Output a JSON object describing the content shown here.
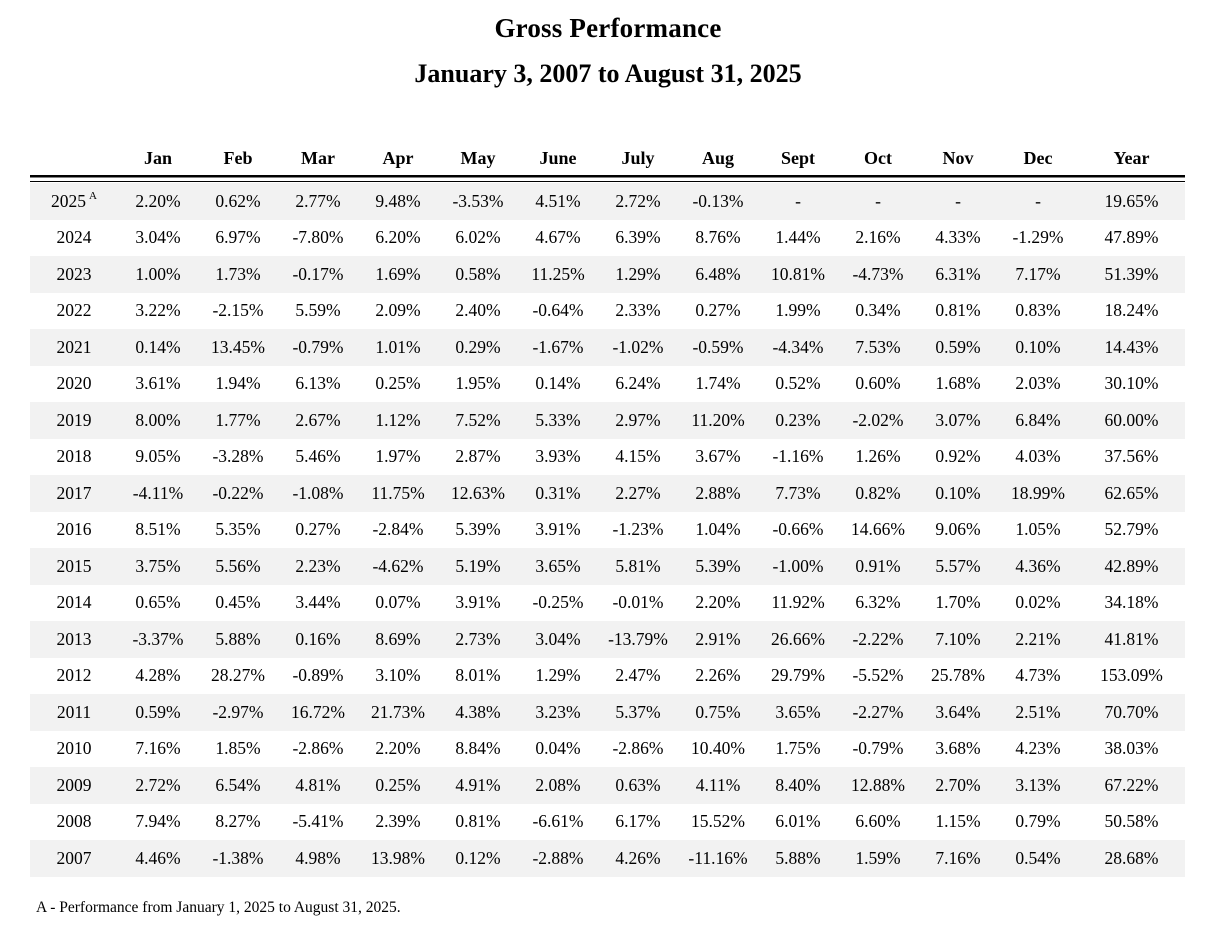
{
  "page": {
    "title": "Gross Performance",
    "subtitle": "January 3, 2007 to August 31, 2025",
    "footnote": "A - Performance from January 1, 2025 to August 31, 2025."
  },
  "colors": {
    "stripe": "#f2f2f2",
    "text": "#000000",
    "background": "#ffffff"
  },
  "table": {
    "columns": [
      "Jan",
      "Feb",
      "Mar",
      "Apr",
      "May",
      "June",
      "July",
      "Aug",
      "Sept",
      "Oct",
      "Nov",
      "Dec",
      "Year"
    ],
    "rows": [
      {
        "year": "2025",
        "superscript": "A",
        "values": [
          "2.20%",
          "0.62%",
          "2.77%",
          "9.48%",
          "-3.53%",
          "4.51%",
          "2.72%",
          "-0.13%",
          "-",
          "-",
          "-",
          "-",
          "19.65%"
        ]
      },
      {
        "year": "2024",
        "superscript": "",
        "values": [
          "3.04%",
          "6.97%",
          "-7.80%",
          "6.20%",
          "6.02%",
          "4.67%",
          "6.39%",
          "8.76%",
          "1.44%",
          "2.16%",
          "4.33%",
          "-1.29%",
          "47.89%"
        ]
      },
      {
        "year": "2023",
        "superscript": "",
        "values": [
          "1.00%",
          "1.73%",
          "-0.17%",
          "1.69%",
          "0.58%",
          "11.25%",
          "1.29%",
          "6.48%",
          "10.81%",
          "-4.73%",
          "6.31%",
          "7.17%",
          "51.39%"
        ]
      },
      {
        "year": "2022",
        "superscript": "",
        "values": [
          "3.22%",
          "-2.15%",
          "5.59%",
          "2.09%",
          "2.40%",
          "-0.64%",
          "2.33%",
          "0.27%",
          "1.99%",
          "0.34%",
          "0.81%",
          "0.83%",
          "18.24%"
        ]
      },
      {
        "year": "2021",
        "superscript": "",
        "values": [
          "0.14%",
          "13.45%",
          "-0.79%",
          "1.01%",
          "0.29%",
          "-1.67%",
          "-1.02%",
          "-0.59%",
          "-4.34%",
          "7.53%",
          "0.59%",
          "0.10%",
          "14.43%"
        ]
      },
      {
        "year": "2020",
        "superscript": "",
        "values": [
          "3.61%",
          "1.94%",
          "6.13%",
          "0.25%",
          "1.95%",
          "0.14%",
          "6.24%",
          "1.74%",
          "0.52%",
          "0.60%",
          "1.68%",
          "2.03%",
          "30.10%"
        ]
      },
      {
        "year": "2019",
        "superscript": "",
        "values": [
          "8.00%",
          "1.77%",
          "2.67%",
          "1.12%",
          "7.52%",
          "5.33%",
          "2.97%",
          "11.20%",
          "0.23%",
          "-2.02%",
          "3.07%",
          "6.84%",
          "60.00%"
        ]
      },
      {
        "year": "2018",
        "superscript": "",
        "values": [
          "9.05%",
          "-3.28%",
          "5.46%",
          "1.97%",
          "2.87%",
          "3.93%",
          "4.15%",
          "3.67%",
          "-1.16%",
          "1.26%",
          "0.92%",
          "4.03%",
          "37.56%"
        ]
      },
      {
        "year": "2017",
        "superscript": "",
        "values": [
          "-4.11%",
          "-0.22%",
          "-1.08%",
          "11.75%",
          "12.63%",
          "0.31%",
          "2.27%",
          "2.88%",
          "7.73%",
          "0.82%",
          "0.10%",
          "18.99%",
          "62.65%"
        ]
      },
      {
        "year": "2016",
        "superscript": "",
        "values": [
          "8.51%",
          "5.35%",
          "0.27%",
          "-2.84%",
          "5.39%",
          "3.91%",
          "-1.23%",
          "1.04%",
          "-0.66%",
          "14.66%",
          "9.06%",
          "1.05%",
          "52.79%"
        ]
      },
      {
        "year": "2015",
        "superscript": "",
        "values": [
          "3.75%",
          "5.56%",
          "2.23%",
          "-4.62%",
          "5.19%",
          "3.65%",
          "5.81%",
          "5.39%",
          "-1.00%",
          "0.91%",
          "5.57%",
          "4.36%",
          "42.89%"
        ]
      },
      {
        "year": "2014",
        "superscript": "",
        "values": [
          "0.65%",
          "0.45%",
          "3.44%",
          "0.07%",
          "3.91%",
          "-0.25%",
          "-0.01%",
          "2.20%",
          "11.92%",
          "6.32%",
          "1.70%",
          "0.02%",
          "34.18%"
        ]
      },
      {
        "year": "2013",
        "superscript": "",
        "values": [
          "-3.37%",
          "5.88%",
          "0.16%",
          "8.69%",
          "2.73%",
          "3.04%",
          "-13.79%",
          "2.91%",
          "26.66%",
          "-2.22%",
          "7.10%",
          "2.21%",
          "41.81%"
        ]
      },
      {
        "year": "2012",
        "superscript": "",
        "values": [
          "4.28%",
          "28.27%",
          "-0.89%",
          "3.10%",
          "8.01%",
          "1.29%",
          "2.47%",
          "2.26%",
          "29.79%",
          "-5.52%",
          "25.78%",
          "4.73%",
          "153.09%"
        ]
      },
      {
        "year": "2011",
        "superscript": "",
        "values": [
          "0.59%",
          "-2.97%",
          "16.72%",
          "21.73%",
          "4.38%",
          "3.23%",
          "5.37%",
          "0.75%",
          "3.65%",
          "-2.27%",
          "3.64%",
          "2.51%",
          "70.70%"
        ]
      },
      {
        "year": "2010",
        "superscript": "",
        "values": [
          "7.16%",
          "1.85%",
          "-2.86%",
          "2.20%",
          "8.84%",
          "0.04%",
          "-2.86%",
          "10.40%",
          "1.75%",
          "-0.79%",
          "3.68%",
          "4.23%",
          "38.03%"
        ]
      },
      {
        "year": "2009",
        "superscript": "",
        "values": [
          "2.72%",
          "6.54%",
          "4.81%",
          "0.25%",
          "4.91%",
          "2.08%",
          "0.63%",
          "4.11%",
          "8.40%",
          "12.88%",
          "2.70%",
          "3.13%",
          "67.22%"
        ]
      },
      {
        "year": "2008",
        "superscript": "",
        "values": [
          "7.94%",
          "8.27%",
          "-5.41%",
          "2.39%",
          "0.81%",
          "-6.61%",
          "6.17%",
          "15.52%",
          "6.01%",
          "6.60%",
          "1.15%",
          "0.79%",
          "50.58%"
        ]
      },
      {
        "year": "2007",
        "superscript": "",
        "values": [
          "4.46%",
          "-1.38%",
          "4.98%",
          "13.98%",
          "0.12%",
          "-2.88%",
          "4.26%",
          "-11.16%",
          "5.88%",
          "1.59%",
          "7.16%",
          "0.54%",
          "28.68%"
        ]
      }
    ]
  }
}
